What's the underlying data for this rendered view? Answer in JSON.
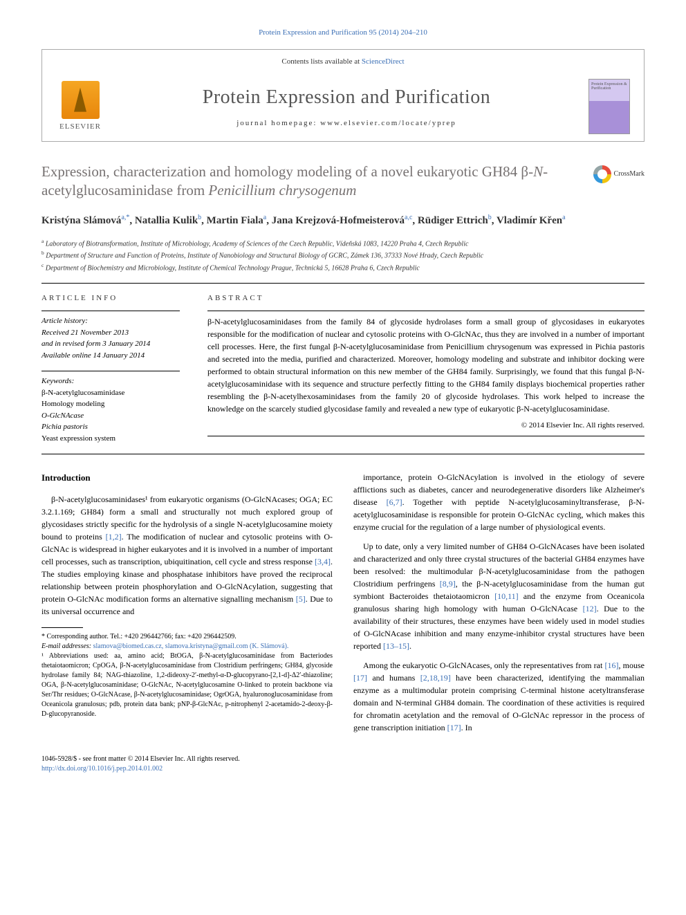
{
  "top_link": "Protein Expression and Purification 95 (2014) 204–210",
  "header": {
    "contents_text": "Contents lists available at ",
    "contents_link": "ScienceDirect",
    "journal_title": "Protein Expression and Purification",
    "homepage_label": "journal homepage: www.elsevier.com/locate/yprep",
    "publisher": "ELSEVIER"
  },
  "crossmark": "CrossMark",
  "title_parts": {
    "pre": "Expression, characterization and homology modeling of a novel eukaryotic GH84 β-",
    "it1": "N",
    "mid": "-acetylglucosaminidase from ",
    "it2": "Penicillium chrysogenum"
  },
  "authors": [
    {
      "name": "Kristýna Slámová",
      "sup": "a,*"
    },
    {
      "name": "Natallia Kulik",
      "sup": "b"
    },
    {
      "name": "Martin Fiala",
      "sup": "a"
    },
    {
      "name": "Jana Krejzová-Hofmeisterová",
      "sup": "a,c"
    },
    {
      "name": "Rüdiger Ettrich",
      "sup": "b"
    },
    {
      "name": "Vladimír Křen",
      "sup": "a"
    }
  ],
  "affiliations": [
    {
      "sup": "a",
      "text": "Laboratory of Biotransformation, Institute of Microbiology, Academy of Sciences of the Czech Republic, Vídeňská 1083, 14220 Praha 4, Czech Republic"
    },
    {
      "sup": "b",
      "text": "Department of Structure and Function of Proteins, Institute of Nanobiology and Structural Biology of GCRC, Zámek 136, 37333 Nové Hrady, Czech Republic"
    },
    {
      "sup": "c",
      "text": "Department of Biochemistry and Microbiology, Institute of Chemical Technology Prague, Technická 5, 16628 Praha 6, Czech Republic"
    }
  ],
  "article_info": {
    "heading": "ARTICLE INFO",
    "history_label": "Article history:",
    "history_lines": [
      "Received 21 November 2013",
      "and in revised form 3 January 2014",
      "Available online 14 January 2014"
    ],
    "keywords_label": "Keywords:",
    "keywords": [
      "β-N-acetylglucosaminidase",
      "Homology modeling",
      "O-GlcNAcase",
      "Pichia pastoris",
      "Yeast expression system"
    ]
  },
  "abstract": {
    "heading": "ABSTRACT",
    "text": "β-N-acetylglucosaminidases from the family 84 of glycoside hydrolases form a small group of glycosidases in eukaryotes responsible for the modification of nuclear and cytosolic proteins with O-GlcNAc, thus they are involved in a number of important cell processes. Here, the first fungal β-N-acetylglucosaminidase from Penicillium chrysogenum was expressed in Pichia pastoris and secreted into the media, purified and characterized. Moreover, homology modeling and substrate and inhibitor docking were performed to obtain structural information on this new member of the GH84 family. Surprisingly, we found that this fungal β-N-acetylglucosaminidase with its sequence and structure perfectly fitting to the GH84 family displays biochemical properties rather resembling the β-N-acetylhexosaminidases from the family 20 of glycoside hydrolases. This work helped to increase the knowledge on the scarcely studied glycosidase family and revealed a new type of eukaryotic β-N-acetylglucosaminidase.",
    "copyright": "© 2014 Elsevier Inc. All rights reserved."
  },
  "intro": {
    "heading": "Introduction",
    "p1": "β-N-acetylglucosaminidases¹ from eukaryotic organisms (O-GlcNAcases; OGA; EC 3.2.1.169; GH84) form a small and structurally not much explored group of glycosidases strictly specific for the hydrolysis of a single N-acetylglucosamine moiety bound to proteins [1,2]. The modification of nuclear and cytosolic proteins with O-GlcNAc is widespread in higher eukaryotes and it is involved in a number of important cell processes, such as transcription, ubiquitination, cell cycle and stress response [3,4]. The studies employing kinase and phosphatase inhibitors have proved the reciprocal relationship between protein phosphorylation and O-GlcNAcylation, suggesting that protein O-GlcNAc modification forms an alternative signalling mechanism [5]. Due to its universal occurrence and",
    "p2": "importance, protein O-GlcNAcylation is involved in the etiology of severe afflictions such as diabetes, cancer and neurodegenerative disorders like Alzheimer's disease [6,7]. Together with peptide N-acetylglucosaminyltransferase, β-N-acetylglucosaminidase is responsible for protein O-GlcNAc cycling, which makes this enzyme crucial for the regulation of a large number of physiological events.",
    "p3": "Up to date, only a very limited number of GH84 O-GlcNAcases have been isolated and characterized and only three crystal structures of the bacterial GH84 enzymes have been resolved: the multimodular β-N-acetylglucosaminidase from the pathogen Clostridium perfringens [8,9], the β-N-acetylglucosaminidase from the human gut symbiont Bacteroides thetaiotaomicron [10,11] and the enzyme from Oceanicola granulosus sharing high homology with human O-GlcNAcase [12]. Due to the availability of their structures, these enzymes have been widely used in model studies of O-GlcNAcase inhibition and many enzyme-inhibitor crystal structures have been reported [13–15].",
    "p4": "Among the eukaryotic O-GlcNAcases, only the representatives from rat [16], mouse [17] and humans [2,18,19] have been characterized, identifying the mammalian enzyme as a multimodular protein comprising C-terminal histone acetyltransferase domain and N-terminal GH84 domain. The coordination of these activities is required for chromatin acetylation and the removal of O-GlcNAc repressor in the process of gene transcription initiation [17]. In"
  },
  "footnotes": {
    "corresponding": "* Corresponding author. Tel.: +420 296442766; fax: +420 296442509.",
    "email_label": "E-mail addresses:",
    "emails": "slamova@biomed.cas.cz, slamova.kristyna@gmail.com (K. Slámová).",
    "abbrev_label": "¹ Abbreviations used:",
    "abbrev_text": "aa, amino acid; BtOGA, β-N-acetylglucosaminidase from Bacteriodes thetaiotaomicron; CpOGA, β-N-acetylglucosaminidase from Clostridium perfringens; GH84, glycoside hydrolase family 84; NAG-thiazoline, 1,2-dideoxy-2′-methyl-α-D-glucopyrano-[2,1-d]-Δ2′-thiazoline; OGA, β-N-acetylglucosaminidase; O-GlcNAc, N-acetylglucosamine O-linked to protein backbone via Ser/Thr residues; O-GlcNAcase, β-N-acetylglucosaminidase; OgrOGA, hyaluronoglucosaminidase from Oceanicola granulosus; pdb, protein data bank; pNP-β-GlcNAc, p-nitrophenyl 2-acetamido-2-deoxy-β-D-glucopyranoside."
  },
  "footer": {
    "line1": "1046-5928/$ - see front matter © 2014 Elsevier Inc. All rights reserved.",
    "doi": "http://dx.doi.org/10.1016/j.pep.2014.01.002"
  },
  "refs": {
    "r12": "[1,2]",
    "r34": "[3,4]",
    "r5": "[5]",
    "r67": "[6,7]",
    "r89": "[8,9]",
    "r1011": "[10,11]",
    "r12a": "[12]",
    "r1315": "[13–15]",
    "r16": "[16]",
    "r17": "[17]",
    "r21819": "[2,18,19]",
    "r17b": "[17]"
  }
}
